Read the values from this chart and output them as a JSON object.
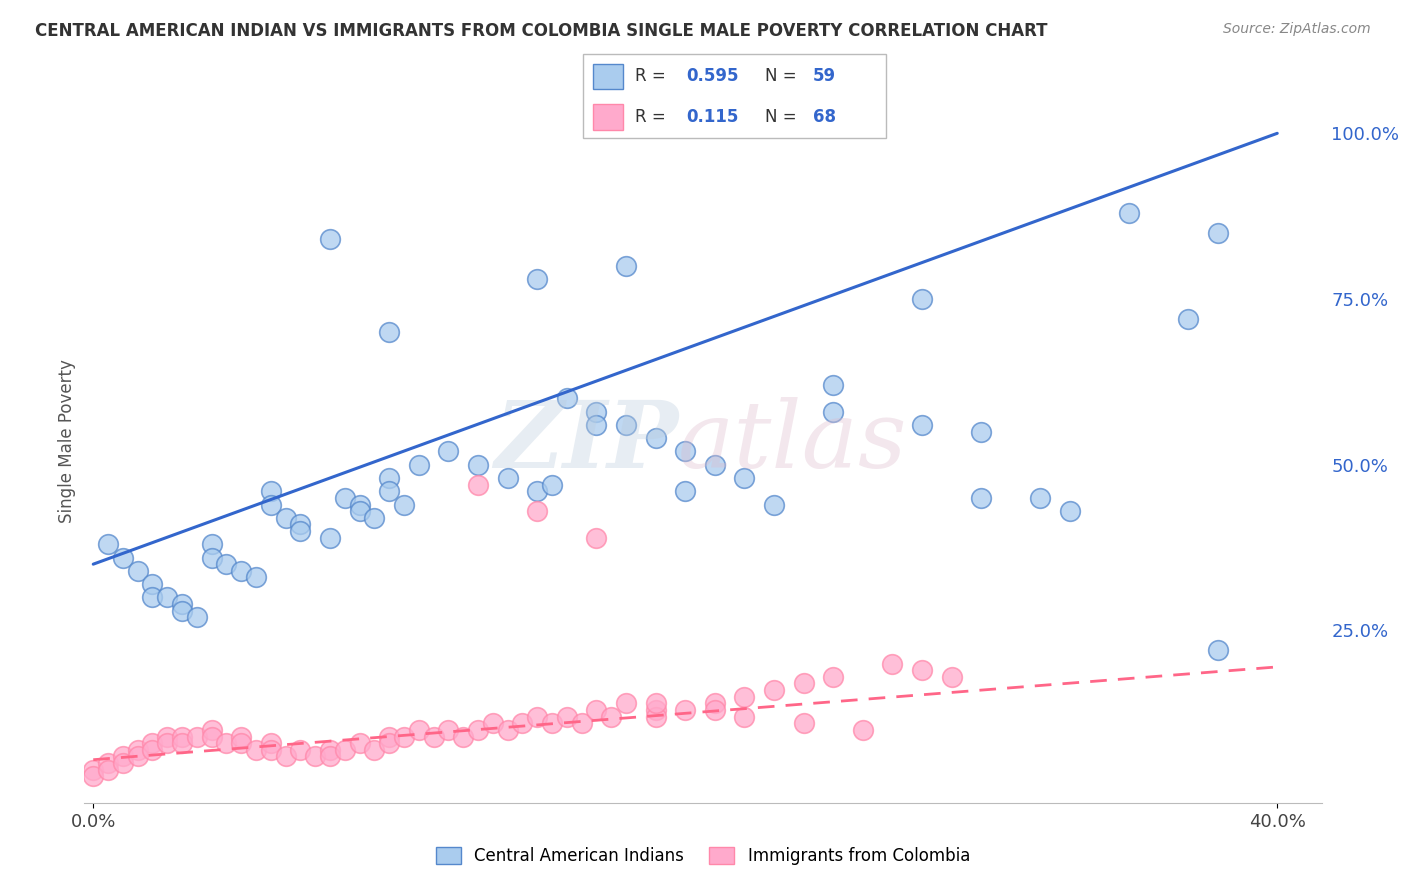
{
  "title": "CENTRAL AMERICAN INDIAN VS IMMIGRANTS FROM COLOMBIA SINGLE MALE POVERTY CORRELATION CHART",
  "source": "Source: ZipAtlas.com",
  "ylabel": "Single Male Poverty",
  "xlim": [
    0.0,
    0.4
  ],
  "ylim": [
    0.0,
    1.05
  ],
  "ytick_values": [
    0.25,
    0.5,
    0.75,
    1.0
  ],
  "ytick_labels": [
    "25.0%",
    "50.0%",
    "75.0%",
    "100.0%"
  ],
  "color_blue_fill": "#AACCEE",
  "color_blue_edge": "#5588CC",
  "color_blue_line": "#3366CC",
  "color_pink_fill": "#FFAACC",
  "color_pink_edge": "#FF88AA",
  "color_pink_line": "#FF6688",
  "blue_line_x0": 0.0,
  "blue_line_y0": 0.35,
  "blue_line_x1": 0.4,
  "blue_line_y1": 1.0,
  "pink_line_x0": 0.0,
  "pink_line_y0": 0.055,
  "pink_line_x1": 0.4,
  "pink_line_y1": 0.195,
  "blue_x": [
    0.005,
    0.01,
    0.015,
    0.02,
    0.02,
    0.025,
    0.03,
    0.03,
    0.035,
    0.04,
    0.04,
    0.045,
    0.05,
    0.055,
    0.06,
    0.06,
    0.065,
    0.07,
    0.07,
    0.08,
    0.085,
    0.09,
    0.09,
    0.095,
    0.1,
    0.1,
    0.105,
    0.11,
    0.12,
    0.13,
    0.14,
    0.15,
    0.155,
    0.16,
    0.17,
    0.18,
    0.19,
    0.2,
    0.21,
    0.22,
    0.15,
    0.17,
    0.2,
    0.23,
    0.25,
    0.28,
    0.3,
    0.33,
    0.35,
    0.37,
    0.38,
    0.38,
    0.28,
    0.32,
    0.25,
    0.3,
    0.18,
    0.08,
    0.1
  ],
  "blue_y": [
    0.38,
    0.36,
    0.34,
    0.32,
    0.3,
    0.3,
    0.29,
    0.28,
    0.27,
    0.38,
    0.36,
    0.35,
    0.34,
    0.33,
    0.46,
    0.44,
    0.42,
    0.41,
    0.4,
    0.39,
    0.45,
    0.44,
    0.43,
    0.42,
    0.48,
    0.46,
    0.44,
    0.5,
    0.52,
    0.5,
    0.48,
    0.46,
    0.47,
    0.6,
    0.58,
    0.56,
    0.54,
    0.52,
    0.5,
    0.48,
    0.78,
    0.56,
    0.46,
    0.44,
    0.58,
    0.56,
    0.45,
    0.43,
    0.88,
    0.72,
    0.22,
    0.85,
    0.75,
    0.45,
    0.62,
    0.55,
    0.8,
    0.84,
    0.7
  ],
  "pink_x": [
    0.0,
    0.0,
    0.005,
    0.005,
    0.01,
    0.01,
    0.015,
    0.015,
    0.02,
    0.02,
    0.025,
    0.025,
    0.03,
    0.03,
    0.035,
    0.04,
    0.04,
    0.045,
    0.05,
    0.05,
    0.055,
    0.06,
    0.06,
    0.065,
    0.07,
    0.075,
    0.08,
    0.08,
    0.085,
    0.09,
    0.095,
    0.1,
    0.1,
    0.105,
    0.11,
    0.115,
    0.12,
    0.125,
    0.13,
    0.135,
    0.14,
    0.145,
    0.15,
    0.155,
    0.16,
    0.165,
    0.17,
    0.175,
    0.18,
    0.19,
    0.19,
    0.2,
    0.21,
    0.22,
    0.23,
    0.24,
    0.25,
    0.27,
    0.28,
    0.29,
    0.13,
    0.15,
    0.17,
    0.19,
    0.21,
    0.22,
    0.24,
    0.26
  ],
  "pink_y": [
    0.04,
    0.03,
    0.05,
    0.04,
    0.06,
    0.05,
    0.07,
    0.06,
    0.08,
    0.07,
    0.09,
    0.08,
    0.09,
    0.08,
    0.09,
    0.1,
    0.09,
    0.08,
    0.09,
    0.08,
    0.07,
    0.08,
    0.07,
    0.06,
    0.07,
    0.06,
    0.07,
    0.06,
    0.07,
    0.08,
    0.07,
    0.09,
    0.08,
    0.09,
    0.1,
    0.09,
    0.1,
    0.09,
    0.1,
    0.11,
    0.1,
    0.11,
    0.12,
    0.11,
    0.12,
    0.11,
    0.13,
    0.12,
    0.14,
    0.13,
    0.12,
    0.13,
    0.14,
    0.15,
    0.16,
    0.17,
    0.18,
    0.2,
    0.19,
    0.18,
    0.47,
    0.43,
    0.39,
    0.14,
    0.13,
    0.12,
    0.11,
    0.1
  ]
}
